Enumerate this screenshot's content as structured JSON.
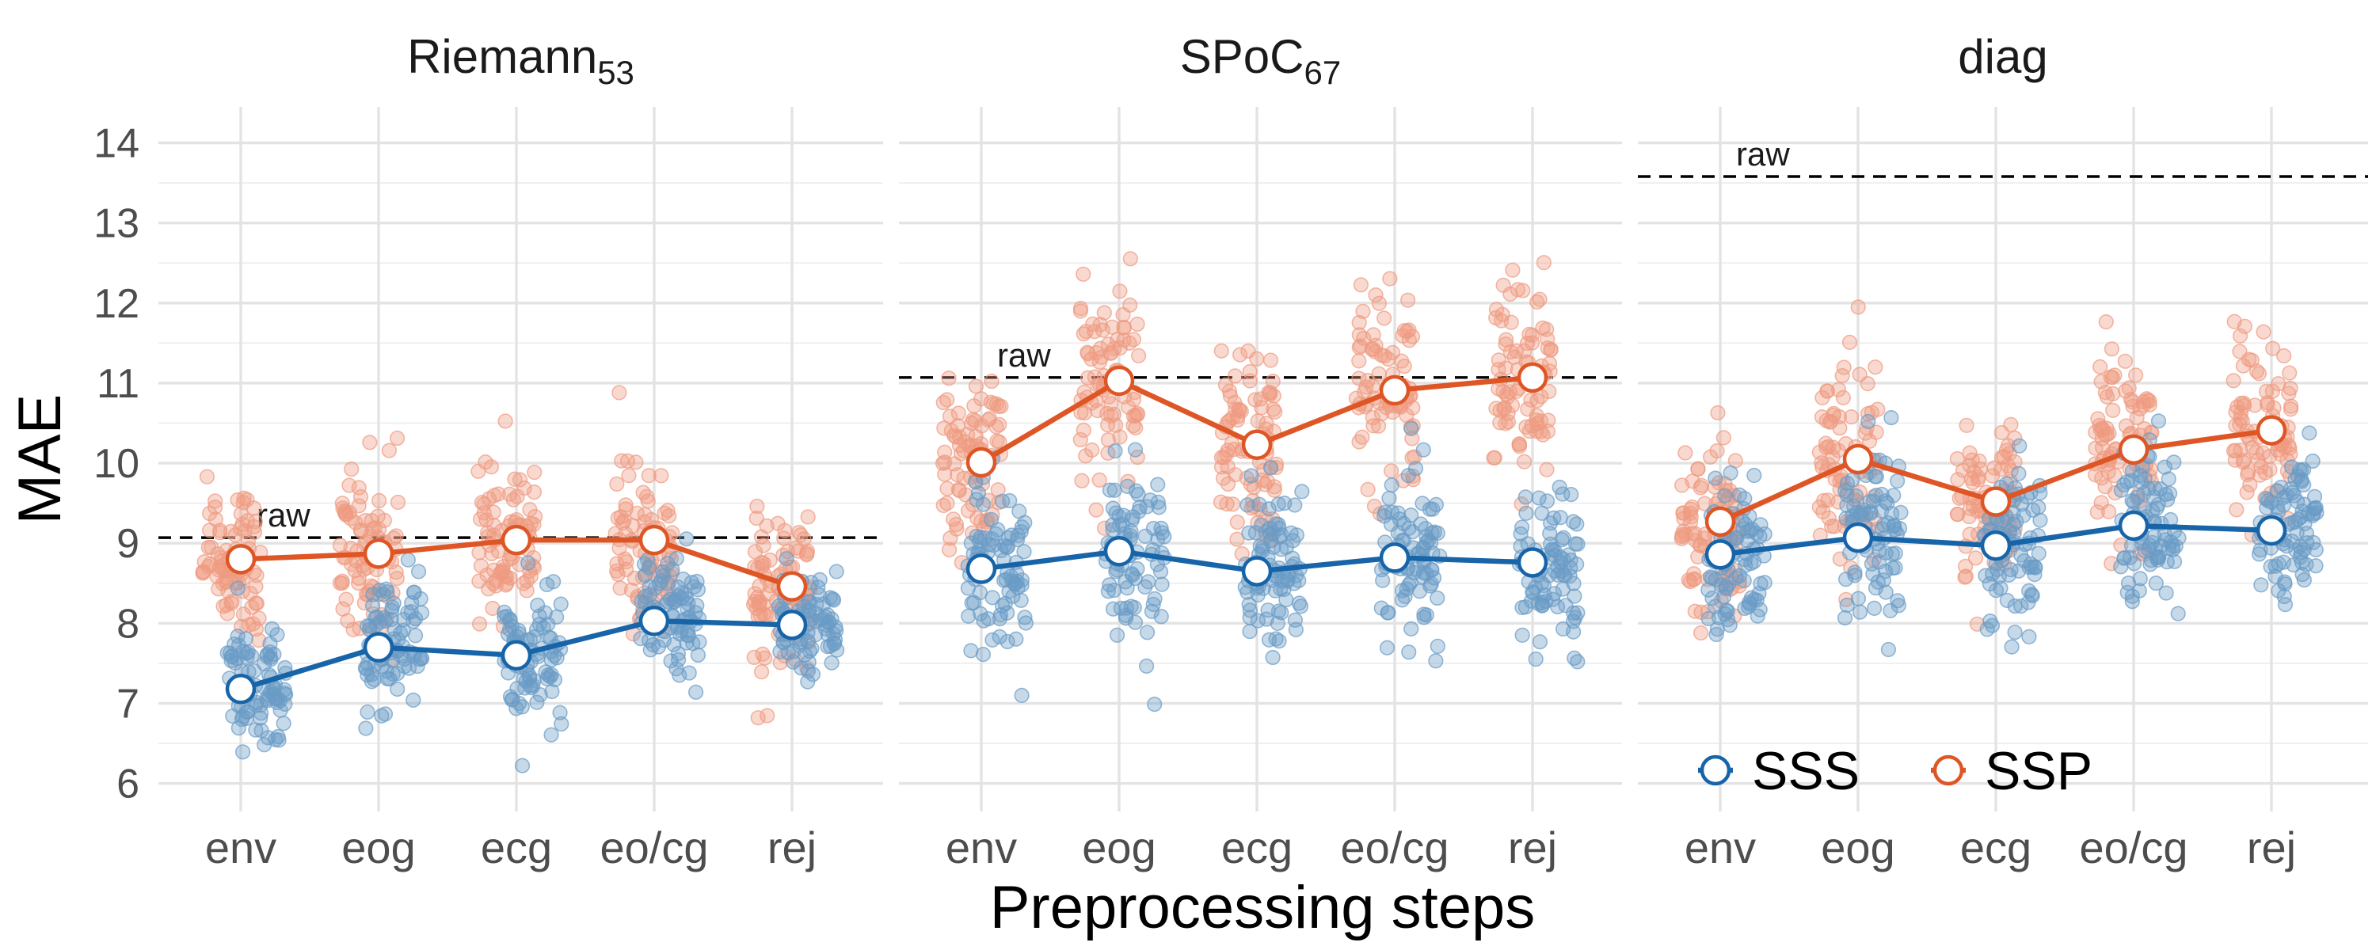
{
  "chart_data": {
    "type": "scatter",
    "xlabel": "Preprocessing steps",
    "ylabel": "MAE",
    "ylim": [
      5.65,
      14.45
    ],
    "yticks": [
      6,
      7,
      8,
      9,
      10,
      11,
      12,
      13,
      14
    ],
    "categories": [
      "env",
      "eog",
      "ecg",
      "eo/cg",
      "rej"
    ],
    "grid": true,
    "legend_position": "bottom-right (inside third panel)",
    "colors": {
      "SSS": "#1764a8",
      "SSP": "#de5625",
      "SSS_points": "#6a9bc6",
      "SSP_points": "#ee9a80"
    },
    "legend": [
      {
        "name": "SSS",
        "color": "#1764a8"
      },
      {
        "name": "SSP",
        "color": "#de5625"
      }
    ],
    "panels": [
      {
        "title": "Riemann",
        "title_subscript": "53",
        "raw_label": "raw",
        "raw_value": 9.07,
        "series": [
          {
            "name": "SSS",
            "values": [
              7.18,
              7.7,
              7.6,
              8.03,
              7.98
            ],
            "spread": [
              0.62,
              0.72,
              0.78,
              0.62,
              0.55
            ]
          },
          {
            "name": "SSP",
            "values": [
              8.8,
              8.87,
              9.04,
              9.04,
              8.46
            ],
            "spread": [
              0.82,
              0.88,
              0.8,
              0.78,
              0.78
            ]
          }
        ]
      },
      {
        "title": "SPoC",
        "title_subscript": "67",
        "raw_label": "raw",
        "raw_value": 11.07,
        "series": [
          {
            "name": "SSS",
            "values": [
              8.68,
              8.9,
              8.65,
              8.82,
              8.76
            ],
            "spread": [
              0.85,
              0.82,
              0.8,
              0.8,
              0.78
            ]
          },
          {
            "name": "SSP",
            "values": [
              10.01,
              11.03,
              10.23,
              10.91,
              11.07
            ],
            "spread": [
              0.95,
              1.05,
              0.98,
              1.05,
              1.05
            ]
          }
        ]
      },
      {
        "title": "diag",
        "title_subscript": "",
        "raw_label": "raw",
        "raw_value": 13.58,
        "series": [
          {
            "name": "SSS",
            "values": [
              8.86,
              9.07,
              8.97,
              9.22,
              9.16
            ],
            "spread": [
              0.8,
              0.85,
              0.8,
              0.82,
              0.78
            ]
          },
          {
            "name": "SSP",
            "values": [
              9.27,
              10.05,
              9.52,
              10.17,
              10.41
            ],
            "spread": [
              0.85,
              0.9,
              0.82,
              0.9,
              0.95
            ]
          }
        ]
      }
    ]
  }
}
